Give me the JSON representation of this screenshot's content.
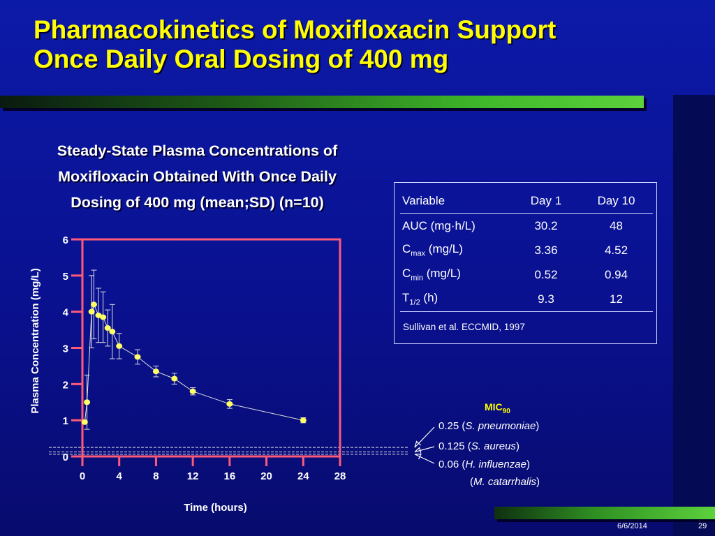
{
  "title_lines": [
    "Pharmacokinetics of Moxifloxacin Support",
    "Once Daily Oral Dosing of 400 mg"
  ],
  "chart_heading_lines": [
    "Steady-State Plasma Concentrations of",
    "Moxifloxacin Obtained With Once Daily",
    "Dosing of 400 mg (mean;SD) (n=10)"
  ],
  "table": {
    "headers": [
      "Variable",
      "Day 1",
      "Day 10"
    ],
    "rows": [
      {
        "var": "AUC (mg·h/L)",
        "sub": "",
        "suffix": "",
        "day1": "30.2",
        "day10": "48"
      },
      {
        "var": "C",
        "sub": "max",
        "suffix": " (mg/L)",
        "day1": "3.36",
        "day10": "4.52"
      },
      {
        "var": "C",
        "sub": "min",
        "suffix": " (mg/L)",
        "day1": "0.52",
        "day10": "0.94"
      },
      {
        "var": "T",
        "sub": "1/2",
        "suffix": " (h)",
        "day1": "9.3",
        "day10": "12"
      }
    ],
    "source": "Sullivan et al. ECCMID, 1997"
  },
  "mic": {
    "title": "MIC",
    "title_sub": "90",
    "items": [
      {
        "value": "0.25",
        "open": " (",
        "organism": "S. pneumoniae",
        "close": ")"
      },
      {
        "value": "0.125",
        "open": " (",
        "organism": "S. aureus",
        "close": ")"
      },
      {
        "value": "0.06",
        "open": " (",
        "organism": "H. influenzae",
        "close": ")"
      },
      {
        "value": "",
        "open": "(",
        "organism": "M. catarrhalis",
        "close": ")"
      }
    ]
  },
  "footer": {
    "date": "6/6/2014",
    "page": "29"
  },
  "chart_data": {
    "type": "line",
    "xlabel": "Time (hours)",
    "ylabel": "Plasma Concentration (mg/L)",
    "xlim": [
      0,
      28
    ],
    "ylim": [
      0,
      6
    ],
    "xticks": [
      0,
      4,
      8,
      12,
      16,
      20,
      24,
      28
    ],
    "yticks": [
      0,
      1,
      2,
      3,
      4,
      5,
      6
    ],
    "series": [
      {
        "points": [
          {
            "x": 0.25,
            "y": 0.95,
            "sd": 0.0
          },
          {
            "x": 0.5,
            "y": 1.5,
            "sd": 0.75
          },
          {
            "x": 1.0,
            "y": 4.0,
            "sd": 1.0
          },
          {
            "x": 1.25,
            "y": 4.2,
            "sd": 0.95
          },
          {
            "x": 1.75,
            "y": 3.9,
            "sd": 0.75
          },
          {
            "x": 2.25,
            "y": 3.85,
            "sd": 0.7
          },
          {
            "x": 2.75,
            "y": 3.55,
            "sd": 0.5
          },
          {
            "x": 3.25,
            "y": 3.45,
            "sd": 0.75
          },
          {
            "x": 4.0,
            "y": 3.05,
            "sd": 0.35
          },
          {
            "x": 6.0,
            "y": 2.75,
            "sd": 0.2
          },
          {
            "x": 8.0,
            "y": 2.35,
            "sd": 0.15
          },
          {
            "x": 10.0,
            "y": 2.15,
            "sd": 0.15
          },
          {
            "x": 12.0,
            "y": 1.8,
            "sd": 0.1
          },
          {
            "x": 16.0,
            "y": 1.45,
            "sd": 0.12
          },
          {
            "x": 24.0,
            "y": 1.0,
            "sd": 0.07
          }
        ]
      }
    ],
    "mic_lines": [
      0.25,
      0.125,
      0.06
    ],
    "colors": {
      "axis": "#ff5a7a",
      "marker": "#ffff66",
      "line": "#e0e0e0",
      "mic": "#b0b0d0"
    },
    "grid": false,
    "legend": "none"
  }
}
